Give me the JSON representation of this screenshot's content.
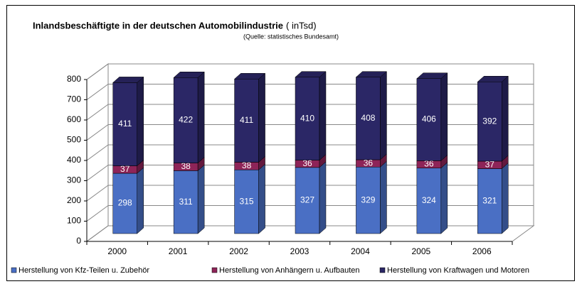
{
  "chart_data": {
    "type": "bar3d_stacked",
    "title": "Inlandsbeschäftigte in der deutschen Automobilindustrie",
    "unit": "( inTsd)",
    "subtitle": "(Quelle: statistisches Bundesamt)",
    "categories": [
      "2000",
      "2001",
      "2002",
      "2003",
      "2004",
      "2005",
      "2006"
    ],
    "series": [
      {
        "name": "Herstellung von Kfz-Teilen u. Zubehör",
        "color": "#4a6fc4",
        "values": [
          298,
          311,
          315,
          327,
          329,
          324,
          321
        ]
      },
      {
        "name": "Herstellung von Anhängern u. Aufbauten",
        "color": "#8e2458",
        "values": [
          37,
          38,
          38,
          36,
          36,
          36,
          37
        ]
      },
      {
        "name": "Herstellung von Kraftwagen und Motoren",
        "color": "#2b2766",
        "values": [
          411,
          422,
          411,
          410,
          408,
          406,
          392
        ]
      }
    ],
    "ylim": [
      0,
      800
    ],
    "yticks": [
      0,
      100,
      200,
      300,
      400,
      500,
      600,
      700,
      800
    ],
    "grid": true
  }
}
